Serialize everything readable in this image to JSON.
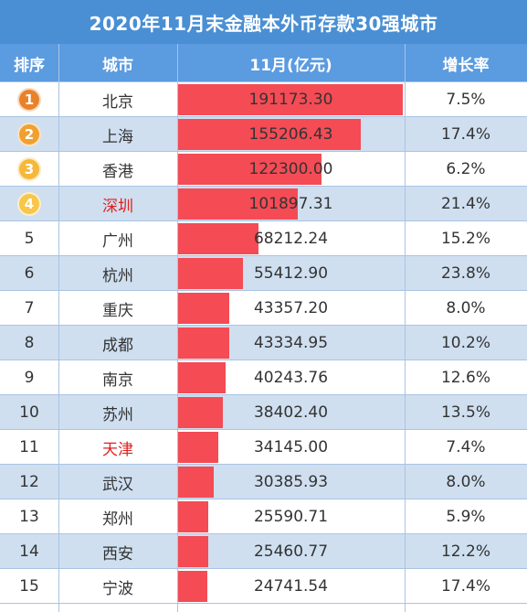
{
  "table": {
    "title": "2020年11月末金融本外币存款30强城市",
    "headers": {
      "rank": "排序",
      "city": "城市",
      "value": "11月(亿元)",
      "growth": "增长率"
    }
  },
  "colors": {
    "bar": "#f44b55",
    "header": "#5b9be0",
    "title": "#4a8fd3",
    "highlight_city": "#e02020",
    "badge_1": "#e8822a",
    "badge_2": "#f0a030",
    "badge_3": "#f5b83a",
    "badge_4": "#f7c64a"
  },
  "chart_data": {
    "type": "table",
    "title": "2020年11月末金融本外币存款30强城市",
    "columns": [
      "排序",
      "城市",
      "11月(亿元)",
      "增长率"
    ],
    "rows": [
      {
        "rank": "1",
        "city": "北京",
        "value": "191173.30",
        "growth": "7.5%",
        "highlight": false
      },
      {
        "rank": "2",
        "city": "上海",
        "value": "155206.43",
        "growth": "17.4%",
        "highlight": false
      },
      {
        "rank": "3",
        "city": "香港",
        "value": "122300.00",
        "growth": "6.2%",
        "highlight": false
      },
      {
        "rank": "4",
        "city": "深圳",
        "value": "101897.31",
        "growth": "21.4%",
        "highlight": true
      },
      {
        "rank": "5",
        "city": "广州",
        "value": "68212.24",
        "growth": "15.2%",
        "highlight": false
      },
      {
        "rank": "6",
        "city": "杭州",
        "value": "55412.90",
        "growth": "23.8%",
        "highlight": false
      },
      {
        "rank": "7",
        "city": "重庆",
        "value": "43357.20",
        "growth": "8.0%",
        "highlight": false
      },
      {
        "rank": "8",
        "city": "成都",
        "value": "43334.95",
        "growth": "10.2%",
        "highlight": false
      },
      {
        "rank": "9",
        "city": "南京",
        "value": "40243.76",
        "growth": "12.6%",
        "highlight": false
      },
      {
        "rank": "10",
        "city": "苏州",
        "value": "38402.40",
        "growth": "13.5%",
        "highlight": false
      },
      {
        "rank": "11",
        "city": "天津",
        "value": "34145.00",
        "growth": "7.4%",
        "highlight": true
      },
      {
        "rank": "12",
        "city": "武汉",
        "value": "30385.93",
        "growth": "8.0%",
        "highlight": false
      },
      {
        "rank": "13",
        "city": "郑州",
        "value": "25590.71",
        "growth": "5.9%",
        "highlight": false
      },
      {
        "rank": "14",
        "city": "西安",
        "value": "25460.77",
        "growth": "12.2%",
        "highlight": false
      },
      {
        "rank": "15",
        "city": "宁波",
        "value": "24741.54",
        "growth": "17.4%",
        "highlight": false
      }
    ]
  }
}
